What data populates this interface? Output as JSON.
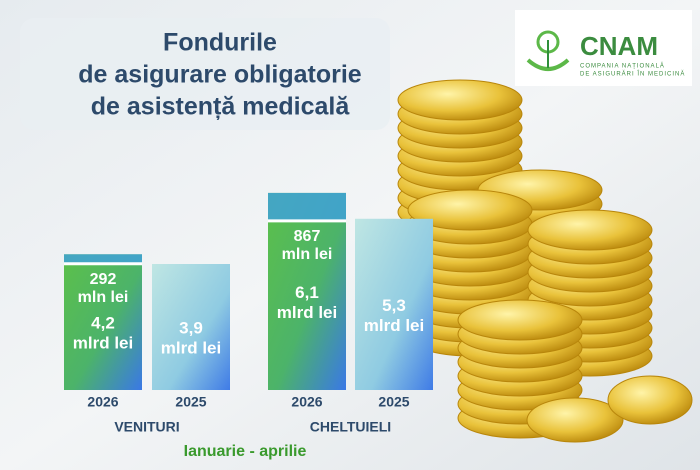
{
  "chart_data": {
    "type": "bar",
    "title": [
      "Fondurile",
      "de asigurare obligatorie",
      "de asistență medicală"
    ],
    "period": "Ianuarie - aprilie",
    "ylim": [
      0,
      6.5
    ],
    "groups": [
      {
        "name": "VENITURI",
        "categories": [
          "2026",
          "2025"
        ],
        "values": [
          4.2,
          3.9
        ],
        "value_labels": [
          [
            "4,2",
            "mlrd lei"
          ],
          [
            "3,9",
            "mlrd lei"
          ]
        ],
        "increase": 0.292,
        "increase_label": [
          "292",
          "mln lei"
        ]
      },
      {
        "name": "CHELTUIELI",
        "categories": [
          "2026",
          "2025"
        ],
        "values": [
          6.1,
          5.3
        ],
        "value_labels": [
          [
            "6,1",
            "mlrd lei"
          ],
          [
            "5,3",
            "mlrd lei"
          ]
        ],
        "increase": 0.867,
        "increase_label": [
          "867",
          "mln lei"
        ]
      }
    ],
    "colors": [
      "url(#gNew)",
      "url(#gOld)"
    ]
  },
  "logo": {
    "name": "CNAM",
    "tagline": [
      "COMPANIA NAȚIONALĂ",
      "DE ASIGURĂRI ÎN MEDICINĂ"
    ]
  }
}
